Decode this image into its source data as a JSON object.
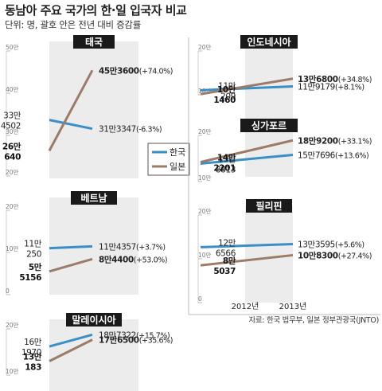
{
  "header": {
    "title": "동남아 주요 국가의 한·일 입국자 비교",
    "subtitle": "단위: 명, 괄호 안은 전년 대비 증감률"
  },
  "legend": {
    "korea": "한국",
    "japan": "일본"
  },
  "colors": {
    "korea": "#3a8fc6",
    "japan": "#9c7b69",
    "panel_title_bg": "#1a1a1a",
    "band": "#ececec"
  },
  "x_labels": [
    "2012년",
    "2013년"
  ],
  "source": "자료: 한국 법무부, 일본 정부관광국(JNTO)",
  "chart_data": [
    {
      "type": "line",
      "title": "태국",
      "categories": [
        "2012년",
        "2013년"
      ],
      "y_ticks": [
        "50만",
        "40만",
        "30만",
        "20만"
      ],
      "ylim": [
        200000,
        500000
      ],
      "series": [
        {
          "name": "한국",
          "values": [
            334502,
            313347
          ],
          "start_label": [
            "33만",
            "4502"
          ],
          "end_label": "31만3347 (-6.3%)"
        },
        {
          "name": "일본",
          "values": [
            260640,
            453600
          ],
          "start_label": [
            "26만",
            "640"
          ],
          "end_label": "45만3600 (+74.0%)"
        }
      ]
    },
    {
      "type": "line",
      "title": "인도네시아",
      "categories": [
        "2012년",
        "2013년"
      ],
      "y_ticks": [
        "20만",
        "10만"
      ],
      "ylim": [
        100000,
        200000
      ],
      "series": [
        {
          "name": "한국",
          "values": [
            110209,
            119179
          ],
          "start_label": [
            "11만",
            "209"
          ],
          "end_label": "11만9179 (+8.1%)"
        },
        {
          "name": "일본",
          "values": [
            101460,
            136800
          ],
          "start_label": [
            "10만",
            "1460"
          ],
          "end_label": "13만6800 (+34.8%)"
        }
      ]
    },
    {
      "type": "line",
      "title": "싱가포르",
      "categories": [
        "2012년",
        "2013년"
      ],
      "y_ticks": [
        "20만",
        "10만"
      ],
      "ylim": [
        100000,
        200000
      ],
      "series": [
        {
          "name": "한국",
          "values": [
            138813,
            157696
          ],
          "start_label": [
            "13만",
            "8813"
          ],
          "end_label": "15만7696 (+13.6%)"
        },
        {
          "name": "일본",
          "values": [
            142201,
            189200
          ],
          "start_label": [
            "14만",
            "2201"
          ],
          "end_label": "18만9200 (+33.1%)"
        }
      ]
    },
    {
      "type": "line",
      "title": "베트남",
      "categories": [
        "2012년",
        "2013년"
      ],
      "y_ticks": [
        "20만",
        "10만",
        "0"
      ],
      "ylim": [
        0,
        200000
      ],
      "series": [
        {
          "name": "한국",
          "values": [
            110250,
            114357
          ],
          "start_label": [
            "11만",
            "250"
          ],
          "end_label": "11만4357 (+3.7%)"
        },
        {
          "name": "일본",
          "values": [
            55156,
            84400
          ],
          "start_label": [
            "5만",
            "5156"
          ],
          "end_label": "8만4400 (+53.0%)"
        }
      ]
    },
    {
      "type": "line",
      "title": "필리핀",
      "categories": [
        "2012년",
        "2013년"
      ],
      "y_ticks": [
        "20만",
        "10만",
        "0"
      ],
      "ylim": [
        0,
        200000
      ],
      "series": [
        {
          "name": "한국",
          "values": [
            126566,
            133595
          ],
          "start_label": [
            "12만",
            "6566"
          ],
          "end_label": "13만3595 (+5.6%)"
        },
        {
          "name": "일본",
          "values": [
            85037,
            108300
          ],
          "start_label": [
            "8만",
            "5037"
          ],
          "end_label": "10만8300 (+27.4%)"
        }
      ]
    },
    {
      "type": "line",
      "title": "말레이시아",
      "categories": [
        "2012년",
        "2013년"
      ],
      "y_ticks": [
        "20만",
        "10만"
      ],
      "ylim": [
        100000,
        200000
      ],
      "series": [
        {
          "name": "한국",
          "values": [
            161970,
            187322
          ],
          "start_label": [
            "16만",
            "1970"
          ],
          "end_label": "18만7322 (+15.7%)"
        },
        {
          "name": "일본",
          "values": [
            130183,
            176500
          ],
          "start_label": [
            "13만",
            "183"
          ],
          "end_label": "17만6500 (+35.6%)"
        }
      ]
    }
  ]
}
